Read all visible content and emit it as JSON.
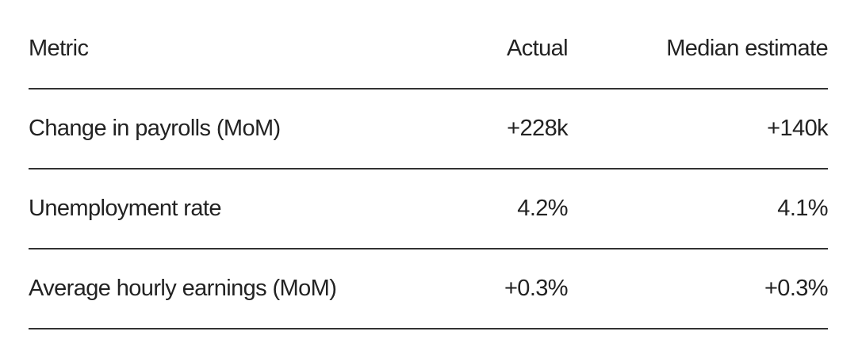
{
  "table": {
    "headers": {
      "metric": "Metric",
      "actual": "Actual",
      "estimate": "Median estimate"
    },
    "rows": [
      {
        "metric": "Change in payrolls (MoM)",
        "actual": "+228k",
        "estimate": "+140k"
      },
      {
        "metric": "Unemployment rate",
        "actual": "4.2%",
        "estimate": "4.1%"
      },
      {
        "metric": "Average hourly earnings (MoM)",
        "actual": "+0.3%",
        "estimate": "+0.3%"
      }
    ]
  }
}
